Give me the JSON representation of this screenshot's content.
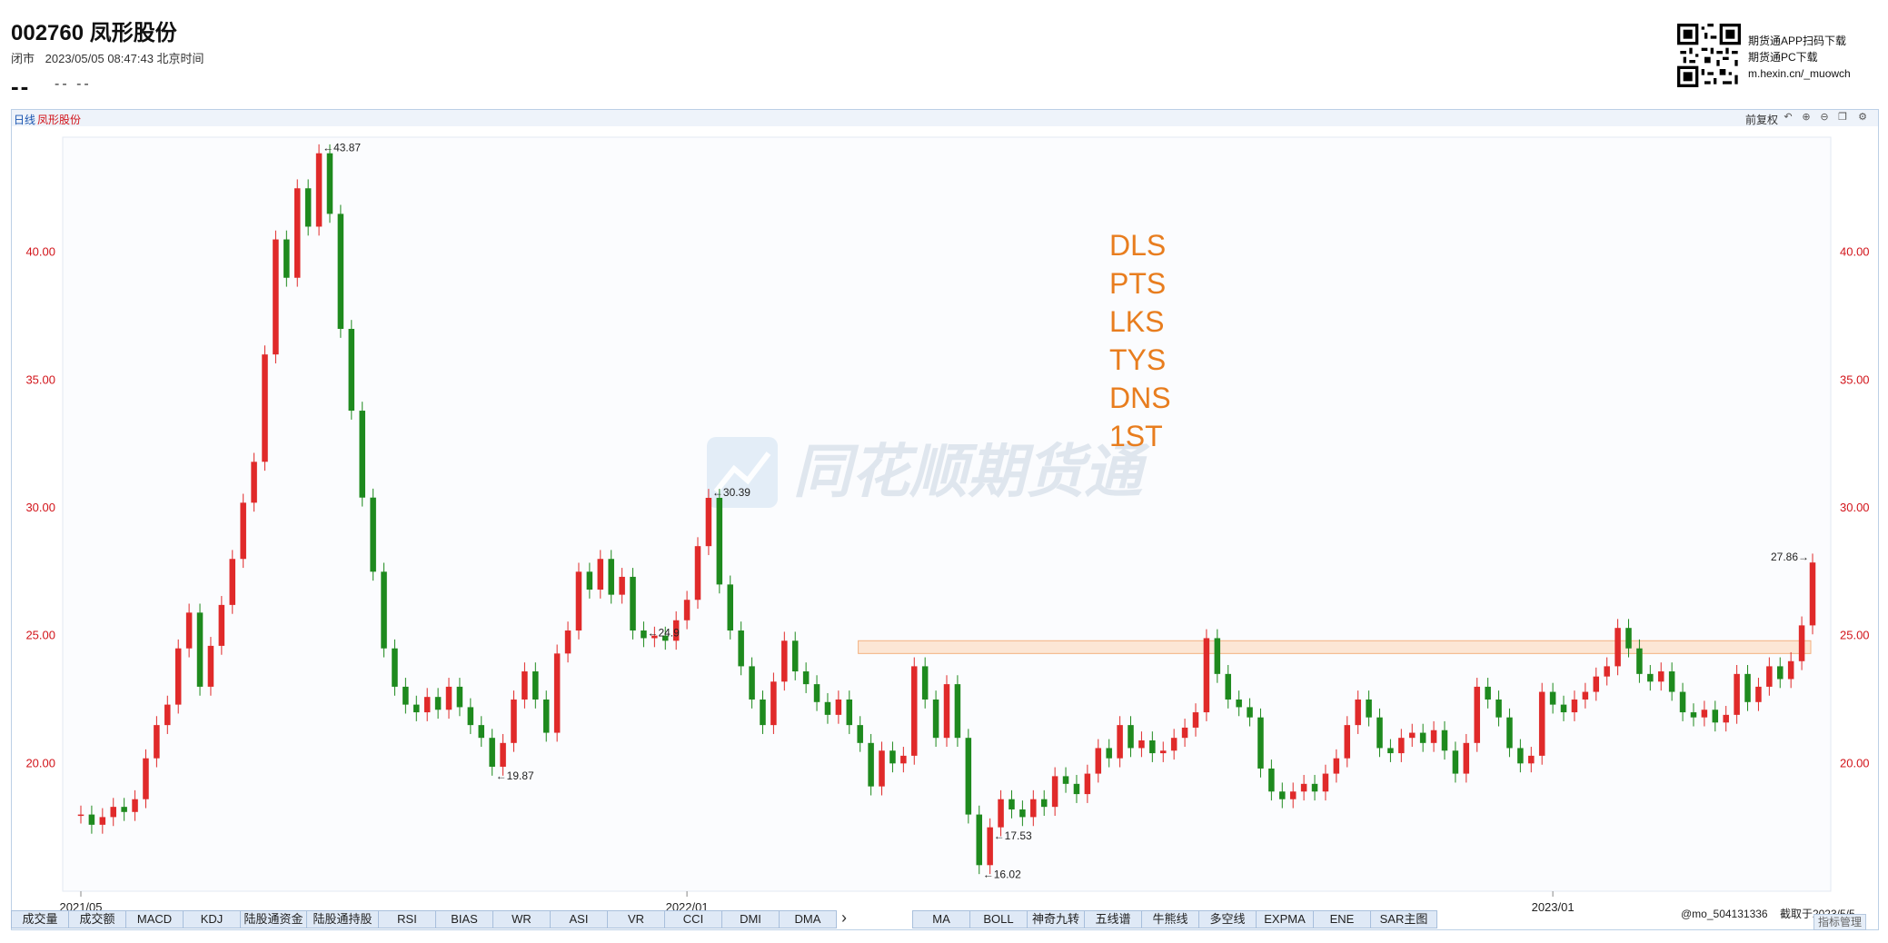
{
  "header": {
    "title": "002760 凤形股份",
    "market_state": "闭市",
    "datetime": "2023/05/05 08:47:43 北京时间",
    "price": "--",
    "change": "-- --"
  },
  "promo": {
    "line1": "期货通APP扫码下载",
    "line2": "期货通PC下载",
    "line3": "m.hexin.cn/_muowch"
  },
  "chart_panel": {
    "period": "日线",
    "stock_name": "凤形股份",
    "adjust_label": "前复权",
    "tools": [
      "undo-icon",
      "zoom-in-icon",
      "zoom-out-icon",
      "window-icon",
      "settings-icon"
    ]
  },
  "watermark": "同花顺期货通",
  "annotation_lines": [
    "DLS",
    "PTS",
    "LKS",
    "TYS",
    "DNS",
    "1ST"
  ],
  "colors": {
    "up": "#e02a2a",
    "down": "#1e8a1e",
    "axis_label": "#d2141a",
    "annotation": "#e87d1e",
    "zone_fill": "#fde3cf",
    "zone_border": "#f2a46b"
  },
  "chart_data": {
    "type": "candlestick",
    "ylim": [
      15.0,
      44.5
    ],
    "yticks": [
      "20.00",
      "25.00",
      "30.00",
      "35.00",
      "40.00"
    ],
    "xtick_labels": [
      "2021/05",
      "2022/01",
      "2023/01"
    ],
    "points": [
      {
        "x": "2021/05",
        "y": 18.0
      },
      {
        "x": "2021/05",
        "y": 17.6
      },
      {
        "x": "2021/05",
        "y": 17.9
      },
      {
        "x": "2021/05",
        "y": 18.3
      },
      {
        "x": "2021/05",
        "y": 18.1
      },
      {
        "x": "2021/06",
        "y": 18.6
      },
      {
        "x": "2021/06",
        "y": 20.2
      },
      {
        "x": "2021/06",
        "y": 21.5
      },
      {
        "x": "2021/06",
        "y": 22.3
      },
      {
        "x": "2021/07",
        "y": 24.5
      },
      {
        "x": "2021/07",
        "y": 25.9
      },
      {
        "x": "2021/07",
        "y": 23.0
      },
      {
        "x": "2021/07",
        "y": 24.6
      },
      {
        "x": "2021/07",
        "y": 26.2
      },
      {
        "x": "2021/08",
        "y": 28.0
      },
      {
        "x": "2021/08",
        "y": 30.2
      },
      {
        "x": "2021/08",
        "y": 31.8
      },
      {
        "x": "2021/08",
        "y": 36.0
      },
      {
        "x": "2021/08",
        "y": 40.5
      },
      {
        "x": "2021/08",
        "y": 39.0
      },
      {
        "x": "2021/08",
        "y": 42.5
      },
      {
        "x": "2021/08",
        "y": 41.0
      },
      {
        "x": "2021/08",
        "y": 43.87
      },
      {
        "x": "2021/08",
        "y": 41.5
      },
      {
        "x": "2021/09",
        "y": 37.0
      },
      {
        "x": "2021/09",
        "y": 33.8
      },
      {
        "x": "2021/09",
        "y": 30.4
      },
      {
        "x": "2021/09",
        "y": 27.5
      },
      {
        "x": "2021/09",
        "y": 24.5
      },
      {
        "x": "2021/09",
        "y": 23.0
      },
      {
        "x": "2021/09",
        "y": 22.3
      },
      {
        "x": "2021/10",
        "y": 22.0
      },
      {
        "x": "2021/10",
        "y": 22.6
      },
      {
        "x": "2021/10",
        "y": 22.1
      },
      {
        "x": "2021/10",
        "y": 23.0
      },
      {
        "x": "2021/10",
        "y": 22.2
      },
      {
        "x": "2021/10",
        "y": 21.5
      },
      {
        "x": "2021/10",
        "y": 21.0
      },
      {
        "x": "2021/10",
        "y": 19.87
      },
      {
        "x": "2021/11",
        "y": 20.8
      },
      {
        "x": "2021/11",
        "y": 22.5
      },
      {
        "x": "2021/11",
        "y": 23.6
      },
      {
        "x": "2021/11",
        "y": 22.5
      },
      {
        "x": "2021/11",
        "y": 21.2
      },
      {
        "x": "2021/11",
        "y": 24.3
      },
      {
        "x": "2021/11",
        "y": 25.2
      },
      {
        "x": "2021/12",
        "y": 27.5
      },
      {
        "x": "2021/12",
        "y": 26.8
      },
      {
        "x": "2021/12",
        "y": 28.0
      },
      {
        "x": "2021/12",
        "y": 26.6
      },
      {
        "x": "2021/12",
        "y": 27.3
      },
      {
        "x": "2021/12",
        "y": 25.2
      },
      {
        "x": "2021/12",
        "y": 24.9
      },
      {
        "x": "2021/12",
        "y": 25.0
      },
      {
        "x": "2021/12",
        "y": 24.8
      },
      {
        "x": "2021/12",
        "y": 25.6
      },
      {
        "x": "2022/01",
        "y": 26.4
      },
      {
        "x": "2022/01",
        "y": 28.5
      },
      {
        "x": "2022/01",
        "y": 30.39
      },
      {
        "x": "2022/01",
        "y": 27.0
      },
      {
        "x": "2022/01",
        "y": 25.2
      },
      {
        "x": "2022/01",
        "y": 23.8
      },
      {
        "x": "2022/02",
        "y": 22.5
      },
      {
        "x": "2022/02",
        "y": 21.5
      },
      {
        "x": "2022/02",
        "y": 23.2
      },
      {
        "x": "2022/02",
        "y": 24.8
      },
      {
        "x": "2022/02",
        "y": 23.6
      },
      {
        "x": "2022/03",
        "y": 23.1
      },
      {
        "x": "2022/03",
        "y": 22.4
      },
      {
        "x": "2022/03",
        "y": 21.9
      },
      {
        "x": "2022/03",
        "y": 22.5
      },
      {
        "x": "2022/03",
        "y": 21.5
      },
      {
        "x": "2022/03",
        "y": 20.8
      },
      {
        "x": "2022/04",
        "y": 19.1
      },
      {
        "x": "2022/04",
        "y": 20.5
      },
      {
        "x": "2022/04",
        "y": 20.0
      },
      {
        "x": "2022/04",
        "y": 20.3
      },
      {
        "x": "2022/04",
        "y": 23.8
      },
      {
        "x": "2022/04",
        "y": 22.5
      },
      {
        "x": "2022/04",
        "y": 21.0
      },
      {
        "x": "2022/04",
        "y": 23.1
      },
      {
        "x": "2022/04",
        "y": 21.0
      },
      {
        "x": "2022/05",
        "y": 18.0
      },
      {
        "x": "2022/05",
        "y": 16.02
      },
      {
        "x": "2022/05",
        "y": 17.5
      },
      {
        "x": "2022/05",
        "y": 18.6
      },
      {
        "x": "2022/05",
        "y": 18.2
      },
      {
        "x": "2022/05",
        "y": 17.9
      },
      {
        "x": "2022/06",
        "y": 18.6
      },
      {
        "x": "2022/06",
        "y": 18.3
      },
      {
        "x": "2022/06",
        "y": 19.5
      },
      {
        "x": "2022/06",
        "y": 19.2
      },
      {
        "x": "2022/06",
        "y": 18.8
      },
      {
        "x": "2022/06",
        "y": 19.6
      },
      {
        "x": "2022/07",
        "y": 20.6
      },
      {
        "x": "2022/07",
        "y": 20.2
      },
      {
        "x": "2022/07",
        "y": 21.5
      },
      {
        "x": "2022/07",
        "y": 20.6
      },
      {
        "x": "2022/07",
        "y": 20.9
      },
      {
        "x": "2022/07",
        "y": 20.4
      },
      {
        "x": "2022/08",
        "y": 20.5
      },
      {
        "x": "2022/08",
        "y": 21.0
      },
      {
        "x": "2022/08",
        "y": 21.4
      },
      {
        "x": "2022/08",
        "y": 22.0
      },
      {
        "x": "2022/08",
        "y": 24.9
      },
      {
        "x": "2022/08",
        "y": 23.5
      },
      {
        "x": "2022/08",
        "y": 22.5
      },
      {
        "x": "2022/08",
        "y": 22.2
      },
      {
        "x": "2022/09",
        "y": 21.8
      },
      {
        "x": "2022/09",
        "y": 19.8
      },
      {
        "x": "2022/09",
        "y": 18.9
      },
      {
        "x": "2022/09",
        "y": 18.6
      },
      {
        "x": "2022/09",
        "y": 18.9
      },
      {
        "x": "2022/09",
        "y": 19.2
      },
      {
        "x": "2022/10",
        "y": 18.9
      },
      {
        "x": "2022/10",
        "y": 19.6
      },
      {
        "x": "2022/10",
        "y": 20.2
      },
      {
        "x": "2022/10",
        "y": 21.5
      },
      {
        "x": "2022/10",
        "y": 22.5
      },
      {
        "x": "2022/10",
        "y": 21.8
      },
      {
        "x": "2022/10",
        "y": 20.6
      },
      {
        "x": "2022/11",
        "y": 20.4
      },
      {
        "x": "2022/11",
        "y": 21.0
      },
      {
        "x": "2022/11",
        "y": 21.2
      },
      {
        "x": "2022/11",
        "y": 20.8
      },
      {
        "x": "2022/11",
        "y": 21.3
      },
      {
        "x": "2022/11",
        "y": 20.5
      },
      {
        "x": "2022/11",
        "y": 19.6
      },
      {
        "x": "2022/12",
        "y": 20.8
      },
      {
        "x": "2022/12",
        "y": 23.0
      },
      {
        "x": "2022/12",
        "y": 22.5
      },
      {
        "x": "2022/12",
        "y": 21.8
      },
      {
        "x": "2022/12",
        "y": 20.6
      },
      {
        "x": "2022/12",
        "y": 20.0
      },
      {
        "x": "2022/12",
        "y": 20.3
      },
      {
        "x": "2022/12",
        "y": 22.8
      },
      {
        "x": "2023/01",
        "y": 22.3
      },
      {
        "x": "2023/01",
        "y": 22.0
      },
      {
        "x": "2023/01",
        "y": 22.5
      },
      {
        "x": "2023/01",
        "y": 22.8
      },
      {
        "x": "2023/01",
        "y": 23.4
      },
      {
        "x": "2023/02",
        "y": 23.8
      },
      {
        "x": "2023/02",
        "y": 25.3
      },
      {
        "x": "2023/02",
        "y": 24.5
      },
      {
        "x": "2023/02",
        "y": 23.5
      },
      {
        "x": "2023/02",
        "y": 23.2
      },
      {
        "x": "2023/03",
        "y": 23.6
      },
      {
        "x": "2023/03",
        "y": 22.8
      },
      {
        "x": "2023/03",
        "y": 22.0
      },
      {
        "x": "2023/03",
        "y": 21.8
      },
      {
        "x": "2023/03",
        "y": 22.1
      },
      {
        "x": "2023/03",
        "y": 21.6
      },
      {
        "x": "2023/04",
        "y": 21.9
      },
      {
        "x": "2023/04",
        "y": 23.5
      },
      {
        "x": "2023/04",
        "y": 22.4
      },
      {
        "x": "2023/04",
        "y": 23.0
      },
      {
        "x": "2023/04",
        "y": 23.8
      },
      {
        "x": "2023/04",
        "y": 23.3
      },
      {
        "x": "2023/04",
        "y": 24.0
      },
      {
        "x": "2023/05",
        "y": 25.4
      },
      {
        "x": "2023/05",
        "y": 27.86
      }
    ],
    "marked_points": [
      {
        "label": "←43.87",
        "value": 43.87
      },
      {
        "label": "←30.39",
        "value": 30.39
      },
      {
        "label": "←24.9",
        "value": 24.9
      },
      {
        "label": "27.86→",
        "value": 27.86
      },
      {
        "label": "←19.87",
        "value": 19.87
      },
      {
        "label": "←17.53",
        "value": 17.53
      },
      {
        "label": "←16.02",
        "value": 16.02
      }
    ],
    "resistance_zone": {
      "from": "2022/04",
      "to": "2023/05",
      "low": 24.3,
      "high": 24.8
    }
  },
  "indicator_tabs_left": [
    "成交量",
    "成交额",
    "MACD",
    "KDJ",
    "陆股通资金",
    "陆股通持股",
    "RSI",
    "BIAS",
    "WR",
    "ASI",
    "VR",
    "CCI",
    "DMI",
    "DMA"
  ],
  "indicator_tabs_right": [
    "MA",
    "BOLL",
    "神奇九转",
    "五线谱",
    "牛熊线",
    "多空线",
    "EXPMA",
    "ENE",
    "SAR主图"
  ],
  "footer": {
    "user": "@mo_504131336",
    "capture": "截取于2023/5/5",
    "button": "指标管理"
  }
}
